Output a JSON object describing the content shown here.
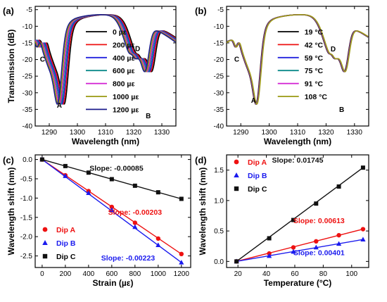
{
  "chart_data": [
    {
      "panel": "(a)",
      "type": "line",
      "xlabel": "Wavelength (nm)",
      "ylabel": "Transmission (dB)",
      "xlim": [
        1285,
        1335
      ],
      "ylim": [
        -40,
        -4
      ],
      "xticks": [
        1290,
        1300,
        1310,
        1320,
        1330
      ],
      "yticks": [
        -40,
        -35,
        -30,
        -25,
        -20,
        -15,
        -10,
        -5
      ],
      "legend_position": "center",
      "series": [
        {
          "name": "0 µε",
          "color": "#000000",
          "shift_nm": 0.0
        },
        {
          "name": "200 µε",
          "color": "#ee1111",
          "shift_nm": -0.41
        },
        {
          "name": "400 µε",
          "color": "#2222dd",
          "shift_nm": -0.81
        },
        {
          "name": "600 µε",
          "color": "#0b8a8a",
          "shift_nm": -1.22
        },
        {
          "name": "800 µε",
          "color": "#d21ed2",
          "shift_nm": -1.62
        },
        {
          "name": "1000 µε",
          "color": "#9a9a10",
          "shift_nm": -2.03
        },
        {
          "name": "1200 µε",
          "color": "#1c1c8c",
          "shift_nm": -2.44
        }
      ],
      "annotations": [
        {
          "text": "A",
          "x": 1293.6,
          "y": -34.5
        },
        {
          "text": "B",
          "x": 1325.2,
          "y": -37.7
        },
        {
          "text": "C",
          "x": 1287.6,
          "y": -20.6
        },
        {
          "text": "D",
          "x": 1321.4,
          "y": -17.4
        }
      ]
    },
    {
      "panel": "(b)",
      "type": "line",
      "xlabel": "Wavelength (nm)",
      "ylabel": "",
      "xlim": [
        1285,
        1335
      ],
      "ylim": [
        -40,
        -4
      ],
      "xticks": [
        1290,
        1300,
        1310,
        1320,
        1330
      ],
      "yticks": [
        -40,
        -35,
        -30,
        -25,
        -20,
        -15,
        -10,
        -5
      ],
      "legend_position": "center",
      "series": [
        {
          "name": "19 °C",
          "color": "#000000",
          "shift_nm": 0.0
        },
        {
          "name": "42 °C",
          "color": "#ee1111",
          "shift_nm": 0.09
        },
        {
          "name": "59 °C",
          "color": "#2222dd",
          "shift_nm": 0.16
        },
        {
          "name": "75 °C",
          "color": "#0b8a8a",
          "shift_nm": 0.22
        },
        {
          "name": "91 °C",
          "color": "#d21ed2",
          "shift_nm": 0.29
        },
        {
          "name": "108 °C",
          "color": "#9a9a10",
          "shift_nm": 0.36
        }
      ],
      "annotations": [
        {
          "text": "A",
          "x": 1294.5,
          "y": -33.0
        },
        {
          "text": "B",
          "x": 1325.5,
          "y": -35.8
        },
        {
          "text": "C",
          "x": 1288.6,
          "y": -20.6
        },
        {
          "text": "D",
          "x": 1322.5,
          "y": -17.6
        }
      ]
    },
    {
      "panel": "(c)",
      "type": "scatter",
      "xlabel": "Strain (µε)",
      "ylabel": "Wavelength shift (nm)",
      "xlim": [
        -60,
        1280
      ],
      "ylim": [
        -2.8,
        0.12
      ],
      "xticks": [
        0,
        200,
        400,
        600,
        800,
        1000,
        1200
      ],
      "yticks": [
        0.0,
        -0.5,
        -1.0,
        -1.5,
        -2.0,
        -2.5
      ],
      "ytick_labels": [
        "0.0",
        "-0.5",
        "-1.0",
        "-1.5",
        "-2.0",
        "-2.5"
      ],
      "legend_position": "bottom-left",
      "x": [
        0,
        200,
        400,
        600,
        800,
        1000,
        1200
      ],
      "series": [
        {
          "name": "Dip A",
          "color": "#ee1111",
          "marker": "circle",
          "values": [
            0,
            -0.41,
            -0.82,
            -1.23,
            -1.64,
            -2.05,
            -2.45
          ],
          "slope": -0.00203
        },
        {
          "name": "Dip B",
          "color": "#1a1aee",
          "marker": "triangle",
          "values": [
            0,
            -0.43,
            -0.87,
            -1.31,
            -1.75,
            -2.22,
            -2.67
          ],
          "slope": -0.00223
        },
        {
          "name": "Dip C",
          "color": "#111111",
          "marker": "square",
          "values": [
            0,
            -0.17,
            -0.34,
            -0.51,
            -0.68,
            -0.85,
            -1.02
          ],
          "slope": -0.00085
        }
      ],
      "annotations": [
        {
          "text": "Slope: -0.00085",
          "color": "#111111",
          "x": 640,
          "y": -0.29
        },
        {
          "text": "Slope: -0.00203",
          "color": "#ee1111",
          "x": 800,
          "y": -1.43
        },
        {
          "text": "Slope: -0.00223",
          "color": "#1a1aee",
          "x": 740,
          "y": -2.62
        }
      ]
    },
    {
      "panel": "(d)",
      "type": "scatter",
      "xlabel": "Temperature (°C)",
      "ylabel": "Wavelength shift (nm)",
      "xlim": [
        12,
        112
      ],
      "ylim": [
        -0.1,
        1.75
      ],
      "xticks": [
        20,
        40,
        60,
        80,
        100
      ],
      "yticks": [
        0.0,
        0.5,
        1.0,
        1.5
      ],
      "ytick_labels": [
        "0.0",
        "0.5",
        "1.0",
        "1.5"
      ],
      "legend_position": "top-left",
      "x": [
        19,
        42,
        59,
        75,
        91,
        108
      ],
      "series": [
        {
          "name": "Dip A",
          "color": "#ee1111",
          "marker": "circle",
          "values": [
            0,
            0.13,
            0.23,
            0.33,
            0.43,
            0.53
          ],
          "slope": 0.00613
        },
        {
          "name": "Dip B",
          "color": "#1a1aee",
          "marker": "triangle",
          "values": [
            0,
            0.09,
            0.16,
            0.23,
            0.29,
            0.36
          ],
          "slope": 0.00401
        },
        {
          "name": "Dip C",
          "color": "#111111",
          "marker": "square",
          "values": [
            0,
            0.38,
            0.68,
            0.95,
            1.23,
            1.54
          ],
          "slope": 0.01745
        }
      ],
      "annotations": [
        {
          "text": "Slope: 0.01745",
          "color": "#111111",
          "x": 62,
          "y": 1.62
        },
        {
          "text": "Slope: 0.00613",
          "color": "#ee1111",
          "x": 77,
          "y": 0.63
        },
        {
          "text": "Slope: 0.00401",
          "color": "#1a1aee",
          "x": 77,
          "y": 0.1
        }
      ]
    }
  ]
}
